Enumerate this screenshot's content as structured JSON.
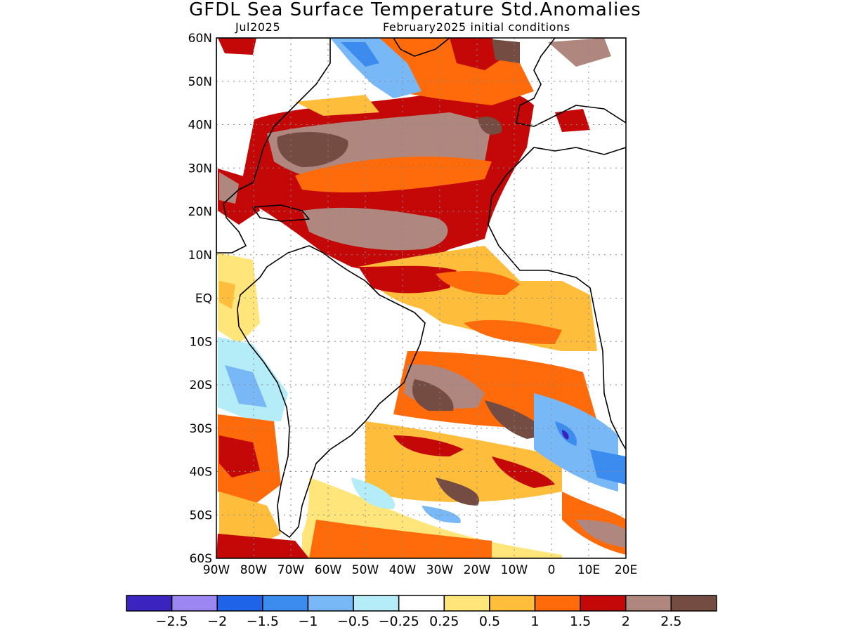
{
  "title": "GFDL Sea Surface Temperature Std.Anomalies",
  "valid_month": "Jul2025",
  "init_label": "February2025 initial conditions",
  "map": {
    "lon_range": [
      -90,
      20
    ],
    "lat_range": [
      -60,
      60
    ],
    "lat_ticks": [
      {
        "value": 60,
        "label": "60N"
      },
      {
        "value": 50,
        "label": "50N"
      },
      {
        "value": 40,
        "label": "40N"
      },
      {
        "value": 30,
        "label": "30N"
      },
      {
        "value": 20,
        "label": "20N"
      },
      {
        "value": 10,
        "label": "10N"
      },
      {
        "value": 0,
        "label": "EQ"
      },
      {
        "value": -10,
        "label": "10S"
      },
      {
        "value": -20,
        "label": "20S"
      },
      {
        "value": -30,
        "label": "30S"
      },
      {
        "value": -40,
        "label": "40S"
      },
      {
        "value": -50,
        "label": "50S"
      },
      {
        "value": -60,
        "label": "60S"
      }
    ],
    "lon_ticks": [
      {
        "value": -90,
        "label": "90W"
      },
      {
        "value": -80,
        "label": "80W"
      },
      {
        "value": -70,
        "label": "70W"
      },
      {
        "value": -60,
        "label": "60W"
      },
      {
        "value": -50,
        "label": "50W"
      },
      {
        "value": -40,
        "label": "40W"
      },
      {
        "value": -30,
        "label": "30W"
      },
      {
        "value": -20,
        "label": "20W"
      },
      {
        "value": -10,
        "label": "10W"
      },
      {
        "value": 0,
        "label": "0"
      },
      {
        "value": 10,
        "label": "10E"
      },
      {
        "value": 20,
        "label": "20E"
      }
    ]
  },
  "colorbar": {
    "colors": [
      "#3a23bf",
      "#9c86f2",
      "#1f63e8",
      "#3c8cf0",
      "#78b8f6",
      "#b4ecf8",
      "#ffffff",
      "#ffe57a",
      "#ffbd3c",
      "#ff6a0a",
      "#c40808",
      "#b0877e",
      "#754c42"
    ],
    "labels": [
      "−2.5",
      "−2",
      "−1.5",
      "−1",
      "−0.5",
      "−0.25",
      "0.25",
      "0.5",
      "1",
      "1.5",
      "2",
      "2.5"
    ]
  }
}
